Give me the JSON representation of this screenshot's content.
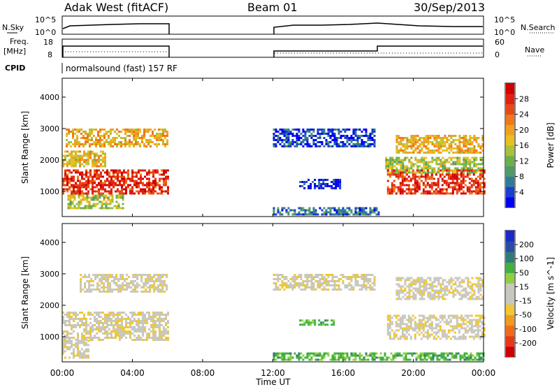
{
  "header": {
    "site": "Adak West (fitACF)",
    "beam": "Beam 01",
    "date": "30/Sep/2013"
  },
  "panels": {
    "nsky": {
      "label": "N.Sky",
      "tick_hi": "10^5",
      "tick_lo": "10^0"
    },
    "nsearch": {
      "label": "N.Search",
      "tick_hi": "10^5",
      "tick_lo": "10^0"
    },
    "freq": {
      "label_top": "Freq.",
      "label_unit": "[MHz]",
      "tick_hi": "18",
      "tick_lo": "8"
    },
    "nave": {
      "label": "Nave",
      "tick_hi": "60",
      "tick_lo": "0"
    },
    "cpid": {
      "label": "CPID",
      "text": "normalsound (fast) 157 RF"
    }
  },
  "colors": {
    "power": [
      "#0000ee",
      "#1a3ecf",
      "#2f7a9a",
      "#4d9a6a",
      "#6cb04a",
      "#a8c23a",
      "#e8c020",
      "#f0a020",
      "#f07818",
      "#e84818",
      "#e02010",
      "#d00000"
    ],
    "velocity": [
      "#d00000",
      "#e83818",
      "#f06a18",
      "#f09a20",
      "#f0c830",
      "#c8c8c0",
      "#c8c8c0",
      "#90d040",
      "#40b040",
      "#307a7a",
      "#2a4aa8",
      "#1a2ac8"
    ],
    "gray": "#c8c8c0"
  },
  "chart_data": [
    {
      "type": "heatmap",
      "title": "Power",
      "ylabel": "Slant Range [km]",
      "y_ticks": [
        "1000",
        "2000",
        "3000",
        "4000"
      ],
      "ylim": [
        200,
        4600
      ],
      "colorbar_label": "Power [dB]",
      "colorbar_ticks": [
        "4",
        "8",
        "12",
        "16",
        "20",
        "24",
        "28"
      ],
      "colorbar_range": [
        0,
        32
      ],
      "bands": [
        {
          "t0": 0.0,
          "t1": 6.0,
          "r0": 900,
          "r1": 1700,
          "level": 0.85
        },
        {
          "t0": 0.2,
          "t1": 6.0,
          "r0": 2400,
          "r1": 3000,
          "level": 0.6
        },
        {
          "t0": 0.0,
          "t1": 2.5,
          "r0": 1800,
          "r1": 2300,
          "level": 0.55
        },
        {
          "t0": 0.3,
          "t1": 3.5,
          "r0": 450,
          "r1": 900,
          "level": 0.45
        },
        {
          "t0": 12.0,
          "t1": 17.8,
          "r0": 2400,
          "r1": 3000,
          "level": 0.12
        },
        {
          "t0": 13.5,
          "t1": 15.8,
          "r0": 1100,
          "r1": 1400,
          "level": 0.05
        },
        {
          "t0": 18.5,
          "t1": 24.0,
          "r0": 900,
          "r1": 1700,
          "level": 0.85
        },
        {
          "t0": 19.0,
          "t1": 24.0,
          "r0": 2200,
          "r1": 2800,
          "level": 0.6
        },
        {
          "t0": 18.4,
          "t1": 24.0,
          "r0": 1600,
          "r1": 2100,
          "level": 0.45
        },
        {
          "t0": 12.0,
          "t1": 18.0,
          "r0": 250,
          "r1": 500,
          "level": 0.2
        }
      ]
    },
    {
      "type": "heatmap",
      "title": "Velocity",
      "ylabel": "Slant Range [km]",
      "y_ticks": [
        "1000",
        "2000",
        "3000",
        "4000"
      ],
      "ylim": [
        200,
        4600
      ],
      "colorbar_label": "Velocity [m s^-1]",
      "colorbar_ticks": [
        "200",
        "100",
        "50",
        "15",
        "-15",
        "-50",
        "-100",
        "-200"
      ],
      "xlabel": "Time UT",
      "x_ticks": [
        "00:00",
        "04:00",
        "08:00",
        "12:00",
        "16:00",
        "20:00",
        "00:00"
      ],
      "xlim_hours": [
        0,
        24
      ],
      "bands": [
        {
          "t0": 0.0,
          "t1": 6.0,
          "r0": 900,
          "r1": 1800,
          "level": 0.45
        },
        {
          "t0": 1.0,
          "t1": 6.0,
          "r0": 2400,
          "r1": 3000,
          "level": 0.45
        },
        {
          "t0": 0.0,
          "t1": 1.5,
          "r0": 350,
          "r1": 900,
          "level": 0.45
        },
        {
          "t0": 12.0,
          "t1": 17.8,
          "r0": 2500,
          "r1": 3000,
          "level": 0.45
        },
        {
          "t0": 18.5,
          "t1": 24.0,
          "r0": 900,
          "r1": 1700,
          "level": 0.45
        },
        {
          "t0": 19.0,
          "t1": 24.0,
          "r0": 2200,
          "r1": 2900,
          "level": 0.45
        },
        {
          "t0": 12.0,
          "t1": 24.0,
          "r0": 250,
          "r1": 500,
          "level": 0.7
        },
        {
          "t0": 13.5,
          "t1": 15.5,
          "r0": 1400,
          "r1": 1550,
          "level": 0.7
        }
      ]
    }
  ]
}
